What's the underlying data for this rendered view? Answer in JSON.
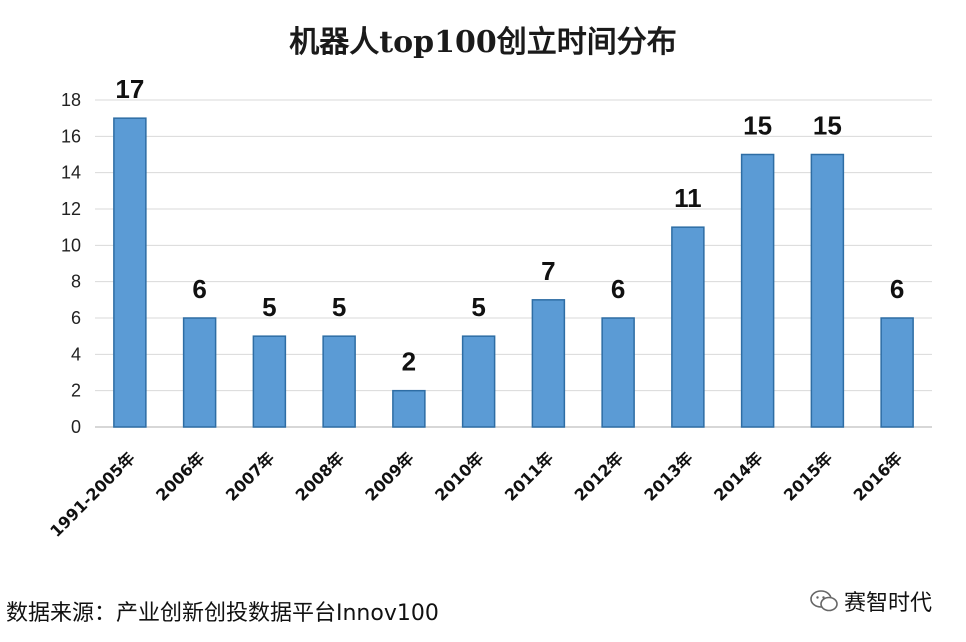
{
  "chart_data": {
    "type": "bar",
    "title": "机器人top100创立时间分布",
    "categories": [
      "1991-2005年",
      "2006年",
      "2007年",
      "2008年",
      "2009年",
      "2010年",
      "2011年",
      "2012年",
      "2013年",
      "2014年",
      "2015年",
      "2016年"
    ],
    "values": [
      17,
      6,
      5,
      5,
      2,
      5,
      7,
      6,
      11,
      15,
      15,
      6
    ],
    "ylim": [
      0,
      18
    ],
    "yticks": [
      0,
      2,
      4,
      6,
      8,
      10,
      12,
      14,
      16,
      18
    ],
    "grid": true,
    "data_labels": true,
    "bar_color": "#5b9bd5"
  },
  "footer": {
    "source": "数据来源：产业创新创投数据平台Innov100",
    "brand": "赛智时代",
    "brand_icon": "wechat-icon"
  }
}
